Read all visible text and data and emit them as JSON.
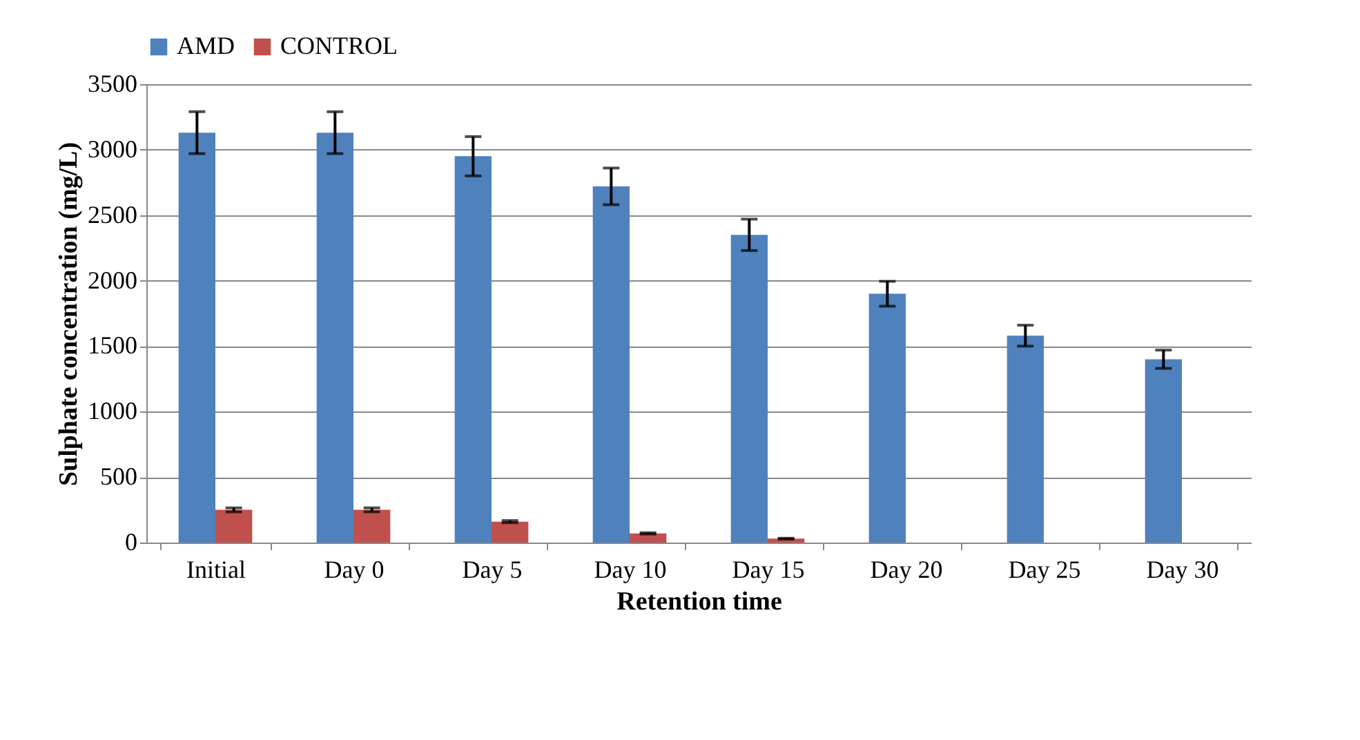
{
  "chart_data": {
    "type": "bar",
    "xlabel": "Retention time",
    "ylabel": "Sulphate concentration (mg/L)",
    "categories": [
      "Initial",
      "Day 0",
      "Day 5",
      "Day 10",
      "Day 15",
      "Day 20",
      "Day 25",
      "Day 30"
    ],
    "series": [
      {
        "name": "AMD",
        "color": "#4f81bd",
        "values": [
          3130,
          3130,
          2950,
          2720,
          2350,
          1900,
          1580,
          1400
        ],
        "errors": [
          160,
          160,
          150,
          140,
          120,
          95,
          80,
          70
        ]
      },
      {
        "name": "CONTROL",
        "color": "#c0504d",
        "values": [
          250,
          250,
          160,
          70,
          30,
          null,
          null,
          null
        ],
        "errors": [
          15,
          15,
          8,
          5,
          3,
          null,
          null,
          null
        ]
      }
    ],
    "ylim": [
      0,
      3500
    ],
    "yticks": [
      0,
      500,
      1000,
      1500,
      2000,
      2500,
      3000,
      3500
    ],
    "grid": "y",
    "legend": "top"
  }
}
